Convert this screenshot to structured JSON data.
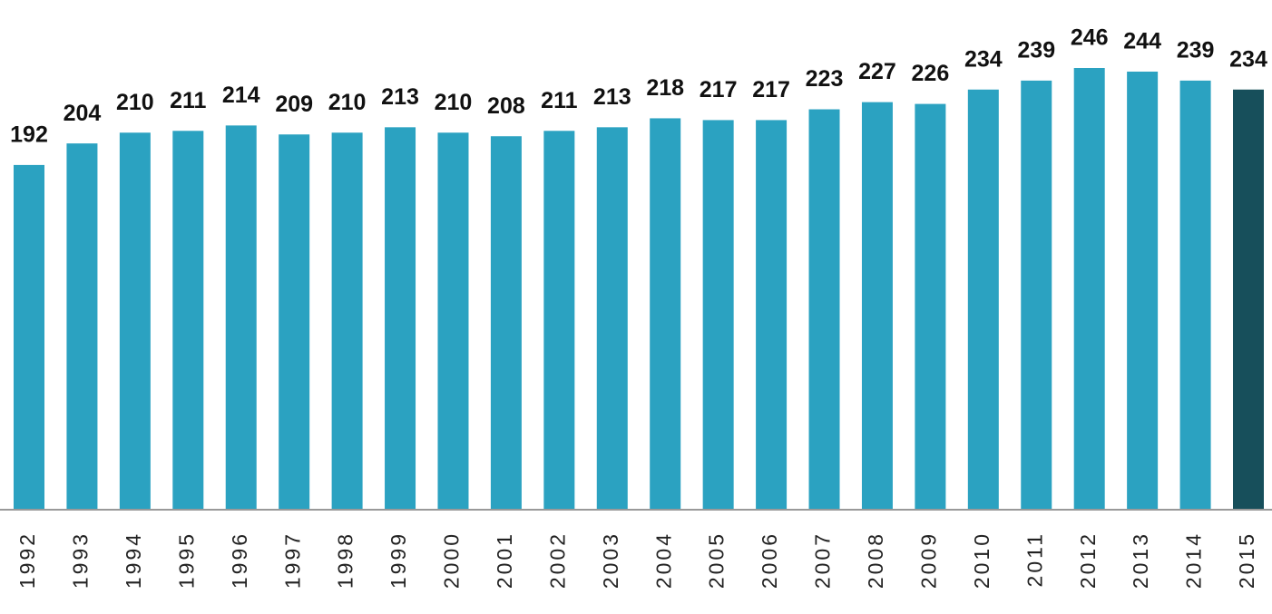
{
  "chart_data": {
    "type": "bar",
    "categories": [
      "1992",
      "1993",
      "1994",
      "1995",
      "1996",
      "1997",
      "1998",
      "1999",
      "2000",
      "2001",
      "2002",
      "2003",
      "2004",
      "2005",
      "2006",
      "2007",
      "2008",
      "2009",
      "2010",
      "2011",
      "2012",
      "2013",
      "2014",
      "2015"
    ],
    "values": [
      192,
      204,
      210,
      211,
      214,
      209,
      210,
      213,
      210,
      208,
      211,
      213,
      218,
      217,
      217,
      223,
      227,
      226,
      234,
      239,
      246,
      244,
      239,
      234
    ],
    "colors": [
      "#2ba2c1",
      "#2ba2c1",
      "#2ba2c1",
      "#2ba2c1",
      "#2ba2c1",
      "#2ba2c1",
      "#2ba2c1",
      "#2ba2c1",
      "#2ba2c1",
      "#2ba2c1",
      "#2ba2c1",
      "#2ba2c1",
      "#2ba2c1",
      "#2ba2c1",
      "#2ba2c1",
      "#2ba2c1",
      "#2ba2c1",
      "#2ba2c1",
      "#2ba2c1",
      "#2ba2c1",
      "#2ba2c1",
      "#2ba2c1",
      "#2ba2c1",
      "#174f5b"
    ]
  }
}
